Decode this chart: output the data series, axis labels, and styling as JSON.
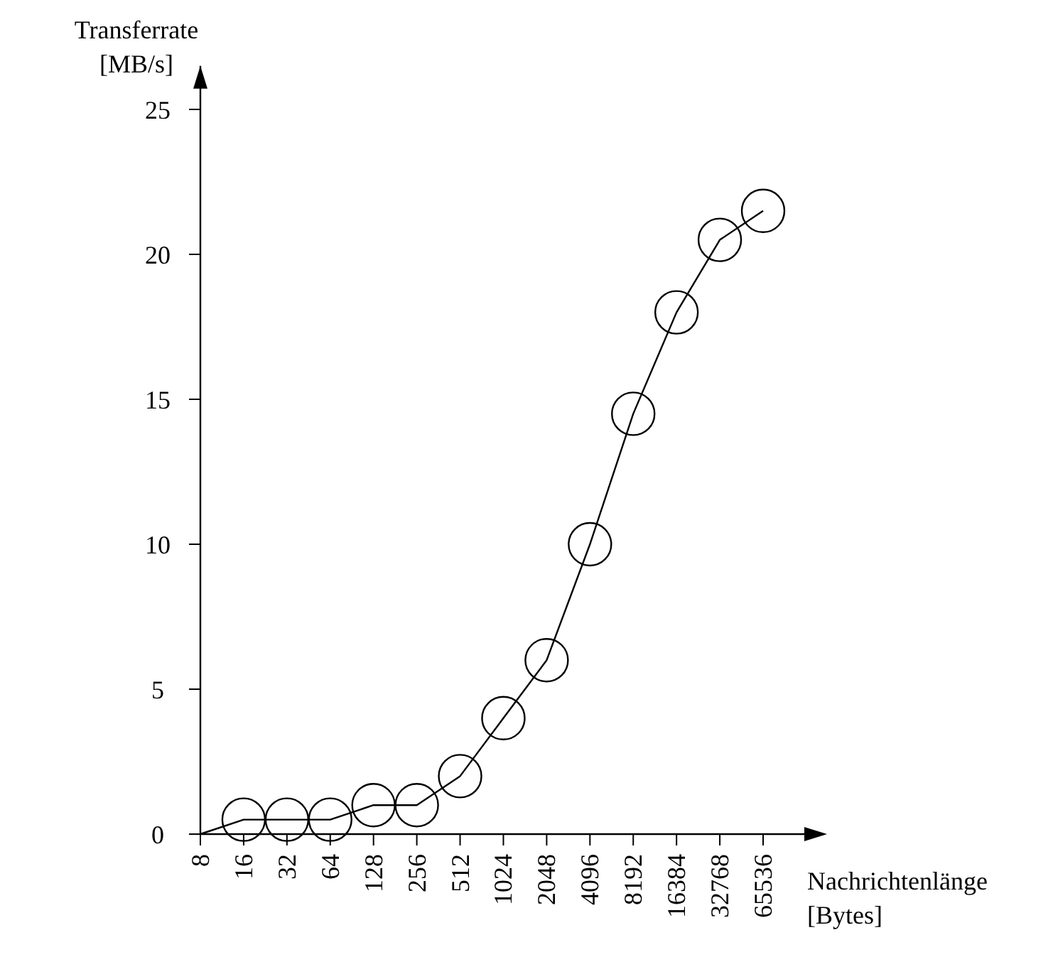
{
  "chart_data": {
    "type": "line",
    "xlabel": "Nachrichtenlänge\n[Bytes]",
    "ylabel": "Transferrate\n[MB/s]",
    "categories": [
      "8",
      "16",
      "32",
      "64",
      "128",
      "256",
      "512",
      "1024",
      "2048",
      "4096",
      "8192",
      "16384",
      "32768",
      "65536"
    ],
    "ylim": [
      0,
      26.5
    ],
    "yticks": [
      0,
      5,
      10,
      15,
      20,
      25
    ],
    "grid": false,
    "series": [
      {
        "color": "#000000",
        "marker": "none",
        "values": [
          0,
          0.5,
          0.5,
          0.5,
          1,
          1,
          2,
          4,
          6,
          10,
          14.5,
          18,
          20.5,
          21.5
        ]
      },
      {
        "type": "scatter",
        "color": "#000000",
        "marker": "circle",
        "values": [
          null,
          0.5,
          0.5,
          0.5,
          1,
          1,
          2,
          4,
          6,
          10,
          14.5,
          18,
          20.5,
          21.5
        ]
      }
    ]
  }
}
